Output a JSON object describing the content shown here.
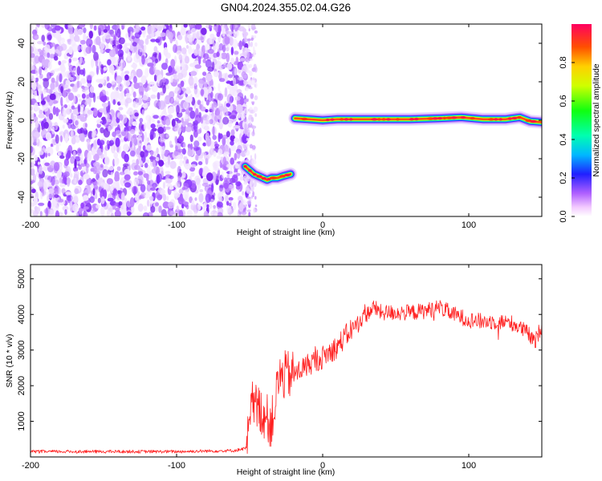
{
  "title": "GN04.2024.355.02.04.G26",
  "chart_data": [
    {
      "type": "heatmap",
      "xlabel": "Height of straight line (km)",
      "ylabel": "Frequency (Hz)",
      "xlim": [
        -200,
        150
      ],
      "ylim": [
        -50,
        50
      ],
      "x_ticks": [
        "-200",
        "-100",
        "0",
        "100"
      ],
      "x_tick_values": [
        -200,
        -100,
        0,
        100
      ],
      "y_ticks": [
        "40",
        "20",
        "0",
        "-20",
        "-40"
      ],
      "y_tick_values": [
        40,
        20,
        0,
        -20,
        -40
      ],
      "colorbar": {
        "label": "Normalized spectral amplitude",
        "range": [
          0,
          1
        ],
        "ticks": [
          "0.0",
          "0.2",
          "0.4",
          "0.6",
          "0.8"
        ],
        "tick_values": [
          0.0,
          0.2,
          0.4,
          0.6,
          0.8
        ],
        "colormap": "rainbow (magenta-blue-cyan-green-yellow-red)"
      },
      "regions": [
        {
          "kind": "noise",
          "x_range": [
            -200,
            -50
          ],
          "freq_range": [
            -50,
            50
          ]
        },
        {
          "kind": "signal",
          "x_range": [
            -55,
            -20
          ],
          "freq_hz": -29
        },
        {
          "kind": "signal",
          "x_range": [
            -20,
            150
          ],
          "freq_hz": 1
        }
      ],
      "signal_track": [
        {
          "x": -53,
          "y": -24
        },
        {
          "x": -50,
          "y": -26
        },
        {
          "x": -47,
          "y": -28
        },
        {
          "x": -44,
          "y": -29
        },
        {
          "x": -41,
          "y": -30
        },
        {
          "x": -38,
          "y": -31
        },
        {
          "x": -35,
          "y": -30
        },
        {
          "x": -31,
          "y": -30
        },
        {
          "x": -27,
          "y": -29
        },
        {
          "x": -22,
          "y": -28
        },
        {
          "x": -19,
          "y": 1
        },
        {
          "x": 0,
          "y": 0
        },
        {
          "x": 10,
          "y": 0.5
        },
        {
          "x": 25,
          "y": 0.5
        },
        {
          "x": 40,
          "y": 0.5
        },
        {
          "x": 60,
          "y": 0.5
        },
        {
          "x": 80,
          "y": 1
        },
        {
          "x": 95,
          "y": 1.5
        },
        {
          "x": 110,
          "y": 0.5
        },
        {
          "x": 125,
          "y": 0.5
        },
        {
          "x": 135,
          "y": 1.5
        },
        {
          "x": 142,
          "y": -0.5
        },
        {
          "x": 150,
          "y": -1
        }
      ]
    },
    {
      "type": "line",
      "xlabel": "Height of straight line (km)",
      "ylabel": "SNR (10 * v/v)",
      "xlim": [
        -200,
        150
      ],
      "ylim": [
        0,
        5400
      ],
      "x_ticks": [
        "-200",
        "-100",
        "0",
        "100"
      ],
      "x_tick_values": [
        -200,
        -100,
        0,
        100
      ],
      "y_ticks": [
        "5000",
        "4000",
        "3000",
        "2000",
        "1000"
      ],
      "y_tick_values": [
        5000,
        4000,
        3000,
        2000,
        1000
      ],
      "line_color": "#ff2020",
      "series": [
        {
          "x": [
            -200,
            -150,
            -100,
            -60,
            -52,
            -48,
            -40,
            -35,
            -30,
            -25,
            -20,
            -10,
            0,
            10,
            20,
            30,
            35,
            40,
            50,
            60,
            70,
            80,
            90,
            100,
            110,
            120,
            130,
            140,
            145,
            150
          ],
          "y": [
            150,
            150,
            150,
            180,
            250,
            1500,
            1200,
            900,
            2200,
            2300,
            2300,
            2600,
            2800,
            3100,
            3600,
            4000,
            4200,
            4050,
            4050,
            4050,
            4100,
            4200,
            4000,
            3850,
            3800,
            3800,
            3750,
            3500,
            3200,
            3700
          ]
        }
      ]
    }
  ]
}
